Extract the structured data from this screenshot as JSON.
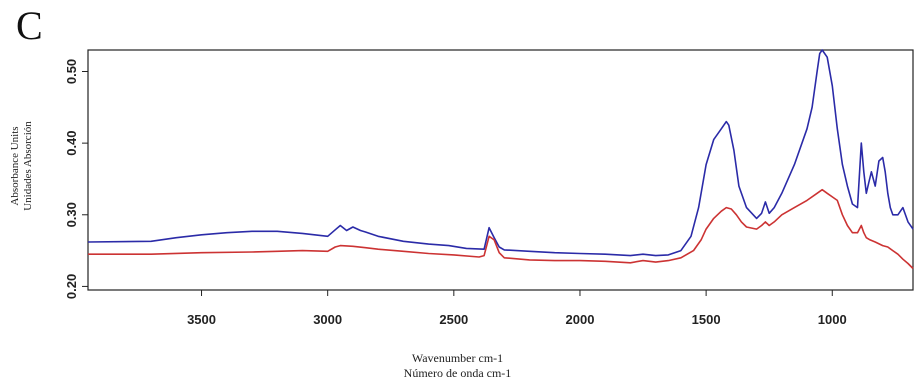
{
  "panel_label": "C",
  "chart_data": {
    "type": "line",
    "xlabel": [
      "Wavenumber cm-1",
      "Número de onda cm-1"
    ],
    "ylabel": [
      "Absorbance Units",
      "Unidades Absorción"
    ],
    "x_reversed": true,
    "xlim": [
      3950,
      680
    ],
    "ylim": [
      0.195,
      0.53
    ],
    "x_ticks": [
      3500,
      3000,
      2500,
      2000,
      1500,
      1000
    ],
    "y_ticks": [
      0.2,
      0.3,
      0.4,
      0.5
    ],
    "y_tick_labels": [
      "0.20",
      "0.30",
      "0.40",
      "0.50"
    ],
    "grid": false,
    "series": [
      {
        "color": "#2b2ba8",
        "x": [
          3950,
          3700,
          3600,
          3500,
          3400,
          3300,
          3200,
          3100,
          3000,
          2970,
          2950,
          2925,
          2900,
          2870,
          2850,
          2800,
          2700,
          2600,
          2520,
          2450,
          2380,
          2360,
          2340,
          2320,
          2300,
          2200,
          2100,
          2000,
          1900,
          1800,
          1750,
          1700,
          1650,
          1600,
          1560,
          1530,
          1500,
          1470,
          1440,
          1420,
          1410,
          1390,
          1370,
          1340,
          1300,
          1280,
          1265,
          1250,
          1230,
          1200,
          1150,
          1100,
          1080,
          1060,
          1050,
          1040,
          1020,
          1000,
          980,
          960,
          940,
          920,
          900,
          885,
          875,
          865,
          855,
          845,
          830,
          815,
          800,
          790,
          780,
          770,
          760,
          740,
          720,
          700,
          680
        ],
        "y": [
          0.262,
          0.263,
          0.268,
          0.272,
          0.275,
          0.277,
          0.277,
          0.274,
          0.27,
          0.279,
          0.285,
          0.278,
          0.283,
          0.278,
          0.276,
          0.27,
          0.263,
          0.259,
          0.257,
          0.253,
          0.252,
          0.282,
          0.268,
          0.255,
          0.251,
          0.249,
          0.247,
          0.246,
          0.245,
          0.243,
          0.245,
          0.243,
          0.244,
          0.25,
          0.27,
          0.31,
          0.37,
          0.405,
          0.42,
          0.43,
          0.425,
          0.39,
          0.34,
          0.31,
          0.295,
          0.302,
          0.318,
          0.302,
          0.31,
          0.33,
          0.37,
          0.42,
          0.45,
          0.5,
          0.525,
          0.53,
          0.52,
          0.48,
          0.42,
          0.37,
          0.34,
          0.315,
          0.31,
          0.4,
          0.36,
          0.33,
          0.345,
          0.36,
          0.34,
          0.375,
          0.38,
          0.36,
          0.33,
          0.31,
          0.3,
          0.3,
          0.31,
          0.29,
          0.28
        ]
      },
      {
        "color": "#cc3333",
        "x": [
          3950,
          3700,
          3500,
          3300,
          3200,
          3100,
          3000,
          2970,
          2950,
          2900,
          2850,
          2800,
          2700,
          2600,
          2500,
          2400,
          2380,
          2360,
          2340,
          2320,
          2300,
          2200,
          2100,
          2000,
          1900,
          1800,
          1750,
          1700,
          1650,
          1600,
          1550,
          1520,
          1500,
          1470,
          1440,
          1420,
          1400,
          1380,
          1360,
          1340,
          1300,
          1280,
          1265,
          1250,
          1230,
          1200,
          1150,
          1100,
          1060,
          1040,
          1020,
          1000,
          980,
          960,
          940,
          920,
          900,
          885,
          875,
          865,
          850,
          830,
          800,
          780,
          760,
          740,
          720,
          700,
          680
        ],
        "y": [
          0.245,
          0.245,
          0.247,
          0.248,
          0.249,
          0.25,
          0.249,
          0.255,
          0.257,
          0.256,
          0.254,
          0.252,
          0.249,
          0.246,
          0.244,
          0.241,
          0.243,
          0.27,
          0.265,
          0.247,
          0.24,
          0.237,
          0.236,
          0.236,
          0.235,
          0.233,
          0.236,
          0.234,
          0.236,
          0.24,
          0.25,
          0.265,
          0.28,
          0.295,
          0.305,
          0.31,
          0.308,
          0.3,
          0.29,
          0.283,
          0.28,
          0.285,
          0.29,
          0.285,
          0.29,
          0.3,
          0.31,
          0.32,
          0.33,
          0.335,
          0.33,
          0.325,
          0.32,
          0.3,
          0.285,
          0.275,
          0.275,
          0.285,
          0.275,
          0.268,
          0.265,
          0.262,
          0.257,
          0.255,
          0.25,
          0.245,
          0.238,
          0.232,
          0.225
        ]
      }
    ]
  }
}
